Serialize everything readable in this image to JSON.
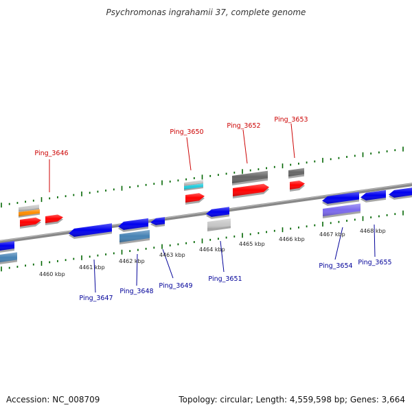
{
  "title": "Psychromonas ingrahamii 37, complete genome",
  "footer": {
    "accession": "Accession: NC_008709",
    "topology": "Topology: circular; Length: 4,559,598 bp; Genes: 3,664"
  },
  "scale_labels": [
    "4460 kbp",
    "4461 kbp",
    "4462 kbp",
    "4463 kbp",
    "4464 kbp",
    "4465 kbp",
    "4466 kbp",
    "4467 kbp",
    "4468 kbp"
  ],
  "top_labels": [
    "Ping_3646",
    "Ping_3650",
    "Ping_3652",
    "Ping_3653"
  ],
  "bottom_labels": [
    "Ping_3647",
    "Ping_3648",
    "Ping_3649",
    "Ping_3651",
    "Ping_3654",
    "Ping_3655"
  ],
  "colors": {
    "top_label": "#cc0000",
    "bottom_label": "#000099",
    "backbone": "#888888",
    "tick": "#006600",
    "red": "#ff0000",
    "blue": "#0000ee",
    "orange": "#ff8c00",
    "cyan": "#22ccdd",
    "steel": "#4682b4",
    "purple": "#7b68ee",
    "silver": "#c8c8c8",
    "dark_gray": "#666666"
  }
}
